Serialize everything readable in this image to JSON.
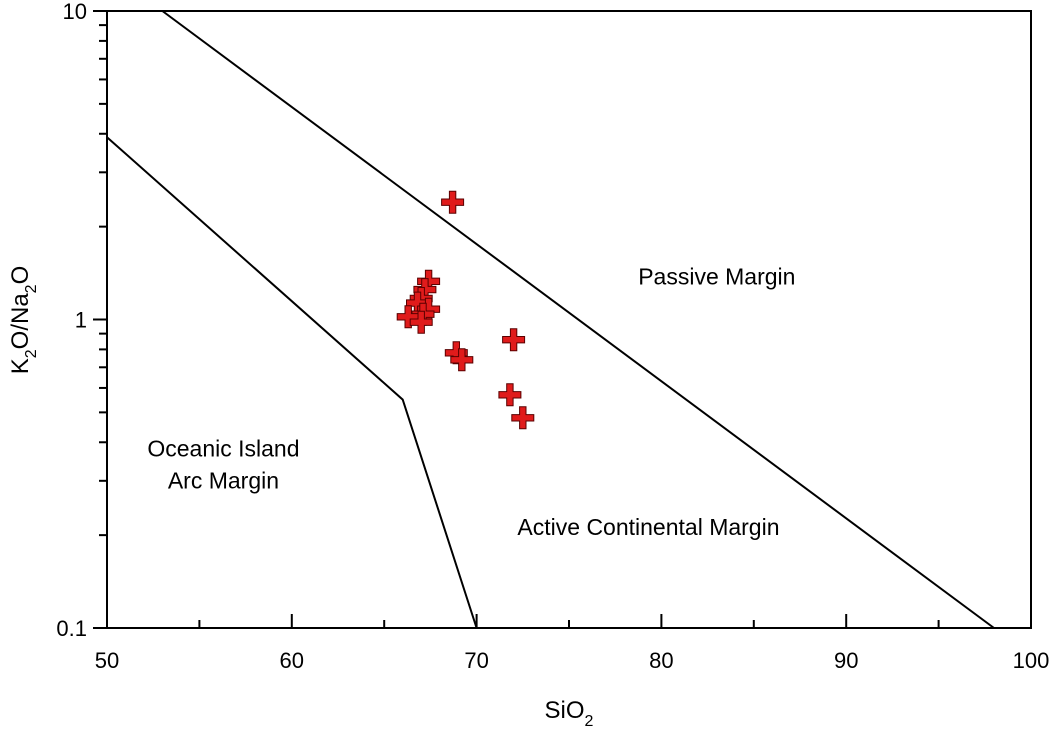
{
  "chart_data": {
    "type": "scatter",
    "title": "",
    "xlabel": {
      "main": "SiO",
      "sub": "2"
    },
    "ylabel": {
      "k": "K",
      "sub1": "2",
      "mid": "O/Na",
      "sub2": "2",
      "end": "O"
    },
    "xlim": [
      50,
      100
    ],
    "ylim": [
      0.1,
      10
    ],
    "yscale": "log",
    "grid": false,
    "legend": "none",
    "marker": "plus",
    "marker_color": "#e01b1b",
    "x_ticks": [
      {
        "value": 50,
        "label": "50"
      },
      {
        "value": 60,
        "label": "60"
      },
      {
        "value": 70,
        "label": "70"
      },
      {
        "value": 80,
        "label": "80"
      },
      {
        "value": 90,
        "label": "90"
      },
      {
        "value": 100,
        "label": "100"
      }
    ],
    "x_minor_ticks": [
      55,
      65,
      75,
      85,
      95
    ],
    "y_ticks": [
      {
        "value": 0.1,
        "label": "0.1"
      },
      {
        "value": 1,
        "label": "1"
      },
      {
        "value": 10,
        "label": "10"
      }
    ],
    "boundaries": [
      {
        "name": "passive-active-boundary",
        "points": [
          [
            53,
            10
          ],
          [
            98,
            0.1
          ]
        ]
      },
      {
        "name": "active-arc-boundary",
        "points": [
          [
            50,
            3.9
          ],
          [
            66,
            0.55
          ],
          [
            70,
            0.1
          ]
        ]
      }
    ],
    "regions": [
      {
        "name": "region-passive-margin",
        "lines": [
          "Passive Margin"
        ],
        "x": 83,
        "y": 1.3
      },
      {
        "name": "region-active-continental-margin",
        "lines": [
          "Active Continental Margin"
        ],
        "x": 79.3,
        "y": 0.2
      },
      {
        "name": "region-oceanic-island-arc-margin",
        "lines": [
          "Oceanic Island",
          "Arc Margin"
        ],
        "x": 56.3,
        "y": 0.36
      }
    ],
    "points": [
      {
        "x": 68.7,
        "y": 2.4
      },
      {
        "x": 67.4,
        "y": 1.33
      },
      {
        "x": 67.2,
        "y": 1.25
      },
      {
        "x": 67.0,
        "y": 1.17
      },
      {
        "x": 66.8,
        "y": 1.13
      },
      {
        "x": 67.4,
        "y": 1.08
      },
      {
        "x": 67.1,
        "y": 1.04
      },
      {
        "x": 66.3,
        "y": 1.02
      },
      {
        "x": 67.0,
        "y": 0.98
      },
      {
        "x": 72.0,
        "y": 0.86
      },
      {
        "x": 68.9,
        "y": 0.78
      },
      {
        "x": 69.2,
        "y": 0.74
      },
      {
        "x": 71.8,
        "y": 0.57
      },
      {
        "x": 72.5,
        "y": 0.48
      }
    ]
  }
}
